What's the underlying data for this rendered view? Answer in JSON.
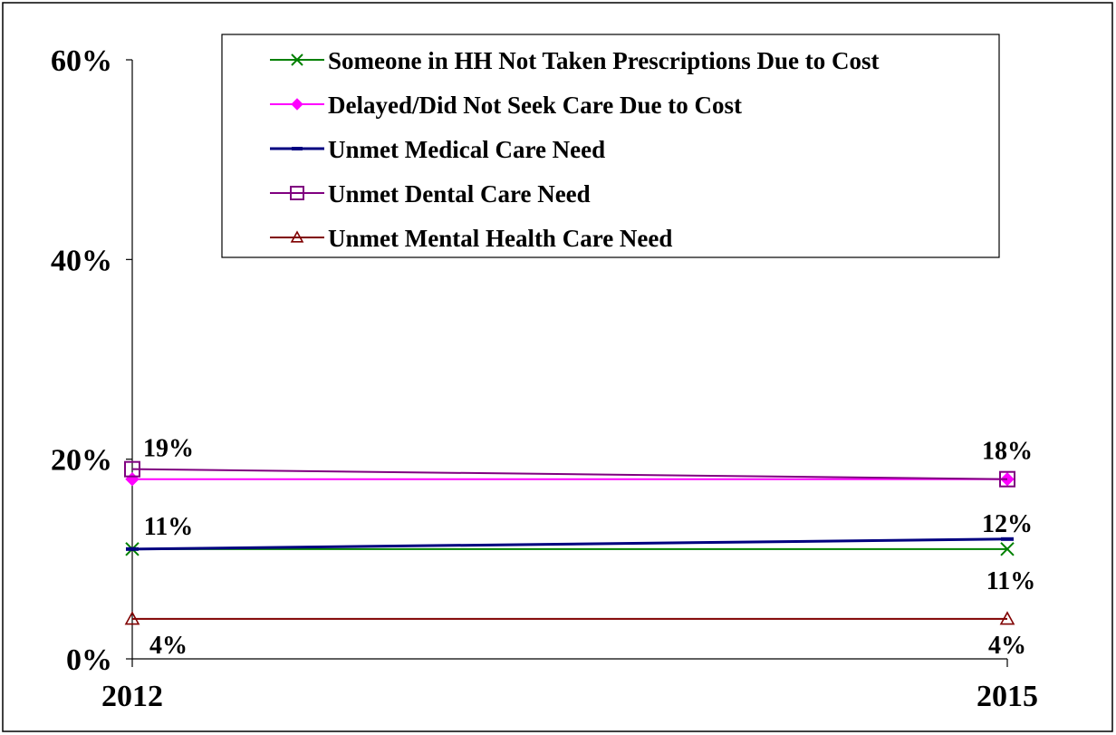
{
  "chart_data": {
    "type": "line",
    "title": "",
    "xlabel": "",
    "ylabel": "",
    "x": [
      "2012",
      "2015"
    ],
    "ylim": [
      0,
      60
    ],
    "yticks": [
      0,
      20,
      40,
      60
    ],
    "ytick_labels": [
      "0%",
      "20%",
      "40%",
      "60%"
    ],
    "grid": false,
    "legend_position": "top-right",
    "series": [
      {
        "name": "Someone in HH Not Taken Prescriptions Due to Cost",
        "values": [
          11,
          11
        ],
        "color": "#008000",
        "marker": "x"
      },
      {
        "name": "Delayed/Did Not Seek Care Due to Cost",
        "values": [
          18,
          18
        ],
        "color": "#ff00ff",
        "marker": "diamond"
      },
      {
        "name": "Unmet Medical Care Need",
        "values": [
          11,
          12
        ],
        "color": "#000080",
        "marker": "dash"
      },
      {
        "name": "Unmet Dental Care Need",
        "values": [
          19,
          18
        ],
        "color": "#800080",
        "marker": "square"
      },
      {
        "name": "Unmet Mental Health Care Need",
        "values": [
          4,
          4
        ],
        "color": "#800000",
        "marker": "triangle"
      }
    ],
    "data_labels": [
      {
        "text": "19%",
        "x": "2012",
        "y": 19
      },
      {
        "text": "11%",
        "x": "2012",
        "y": 11
      },
      {
        "text": "4%",
        "x": "2012",
        "y": 4
      },
      {
        "text": "18%",
        "x": "2015",
        "y": 18
      },
      {
        "text": "12%",
        "x": "2015",
        "y": 12
      },
      {
        "text": "11%",
        "x": "2015",
        "y": 11
      },
      {
        "text": "4%",
        "x": "2015",
        "y": 4
      }
    ]
  }
}
